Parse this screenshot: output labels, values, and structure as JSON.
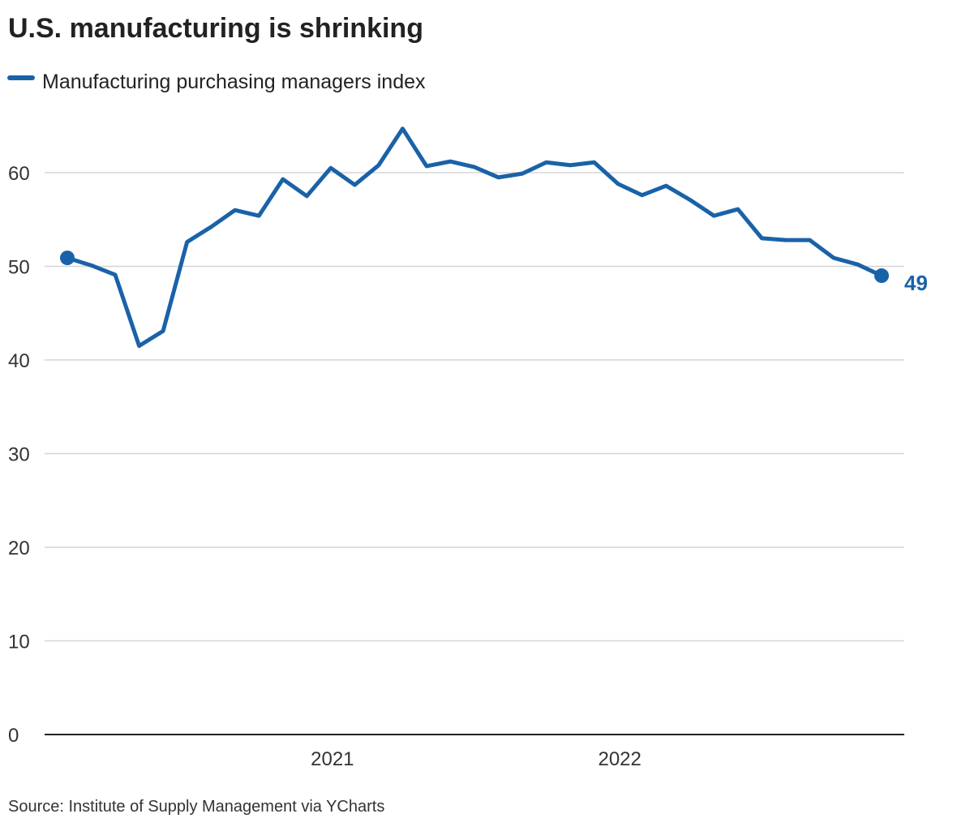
{
  "title": "U.S. manufacturing is shrinking",
  "source": "Source: Institute of Supply Management via YCharts",
  "chart_data": {
    "type": "line",
    "title": "U.S. manufacturing is shrinking",
    "xlabel": "",
    "ylabel": "",
    "ylim": [
      0,
      65
    ],
    "yticks": [
      0,
      10,
      20,
      30,
      40,
      50,
      60
    ],
    "xticks": [
      "2021",
      "2022"
    ],
    "grid": true,
    "legend_position": "top-left",
    "color": "#1a62a8",
    "end_label": "49",
    "series": [
      {
        "name": "Manufacturing purchasing managers index",
        "x": [
          "2020-01",
          "2020-02",
          "2020-03",
          "2020-04",
          "2020-05",
          "2020-06",
          "2020-07",
          "2020-08",
          "2020-09",
          "2020-10",
          "2020-11",
          "2020-12",
          "2021-01",
          "2021-02",
          "2021-03",
          "2021-04",
          "2021-05",
          "2021-06",
          "2021-07",
          "2021-08",
          "2021-09",
          "2021-10",
          "2021-11",
          "2021-12",
          "2022-01",
          "2022-02",
          "2022-03",
          "2022-04",
          "2022-05",
          "2022-06",
          "2022-07",
          "2022-08",
          "2022-09",
          "2022-10",
          "2022-11"
        ],
        "values": [
          50.9,
          50.1,
          49.1,
          41.5,
          43.1,
          52.6,
          54.2,
          56.0,
          55.4,
          59.3,
          57.5,
          60.5,
          58.7,
          60.8,
          64.7,
          60.7,
          61.2,
          60.6,
          59.5,
          59.9,
          61.1,
          60.8,
          61.1,
          58.8,
          57.6,
          58.6,
          57.1,
          55.4,
          56.1,
          53.0,
          52.8,
          52.8,
          50.9,
          50.2,
          49.0
        ]
      }
    ]
  }
}
